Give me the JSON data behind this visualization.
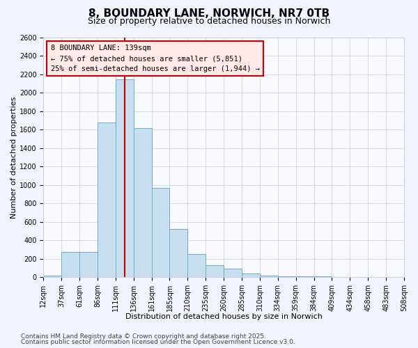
{
  "title": "8, BOUNDARY LANE, NORWICH, NR7 0TB",
  "subtitle": "Size of property relative to detached houses in Norwich",
  "xlabel": "Distribution of detached houses by size in Norwich",
  "ylabel": "Number of detached properties",
  "bar_values": [
    15,
    270,
    270,
    1680,
    2150,
    1620,
    970,
    520,
    250,
    130,
    90,
    40,
    15,
    10,
    5,
    5,
    3,
    2,
    1,
    1
  ],
  "tick_labels": [
    "12sqm",
    "37sqm",
    "61sqm",
    "86sqm",
    "111sqm",
    "136sqm",
    "161sqm",
    "185sqm",
    "210sqm",
    "235sqm",
    "260sqm",
    "285sqm",
    "310sqm",
    "334sqm",
    "359sqm",
    "384sqm",
    "409sqm",
    "434sqm",
    "458sqm",
    "483sqm",
    "508sqm"
  ],
  "n_bins": 20,
  "bar_color": "#c8dff0",
  "bar_edge_color": "#6aaad4",
  "vline_x": 4.5,
  "vline_color": "#cc0000",
  "ylim": [
    0,
    2600
  ],
  "yticks": [
    0,
    200,
    400,
    600,
    800,
    1000,
    1200,
    1400,
    1600,
    1800,
    2000,
    2200,
    2400,
    2600
  ],
  "annotation_title": "8 BOUNDARY LANE: 139sqm",
  "annotation_line1": "← 75% of detached houses are smaller (5,851)",
  "annotation_line2": "25% of semi-detached houses are larger (1,944) →",
  "annotation_box_facecolor": "#ffe8e8",
  "annotation_box_edge": "#cc0000",
  "footnote1": "Contains HM Land Registry data © Crown copyright and database right 2025.",
  "footnote2": "Contains public sector information licensed under the Open Government Licence v3.0.",
  "bg_color": "#f0f4ff",
  "plot_bg_color": "#f8faff",
  "grid_color": "#c8d0e8",
  "title_fontsize": 11,
  "subtitle_fontsize": 9,
  "axis_label_fontsize": 8,
  "tick_fontsize": 7,
  "annotation_fontsize": 7.5,
  "footnote_fontsize": 6.5
}
